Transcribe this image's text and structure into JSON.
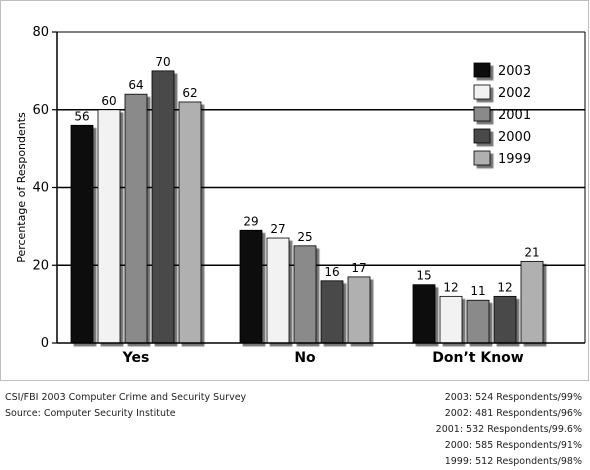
{
  "chart_data": {
    "type": "bar",
    "categories": [
      "Yes",
      "No",
      "Don’t Know"
    ],
    "series": [
      {
        "name": "2003",
        "values": [
          56,
          29,
          15
        ],
        "color": "#0a0a0a"
      },
      {
        "name": "2002",
        "values": [
          60,
          27,
          12
        ],
        "color": "#f2f2f2"
      },
      {
        "name": "2001",
        "values": [
          64,
          25,
          11
        ],
        "color": "#8a8a8a"
      },
      {
        "name": "2000",
        "values": [
          70,
          16,
          12
        ],
        "color": "#4a4a4a"
      },
      {
        "name": "1999",
        "values": [
          62,
          17,
          21
        ],
        "color": "#b0b0b0"
      }
    ],
    "ylabel": "Percentage of Respondents",
    "ylim": [
      0,
      80
    ],
    "yticks": [
      0,
      20,
      40,
      60,
      80
    ],
    "gridlines": [
      20,
      40,
      60
    ],
    "legend_position": "top-right"
  },
  "footer": {
    "source_lines": [
      "CSI/FBI 2003 Computer Crime and Security Survey",
      "Source: Computer Security Institute"
    ],
    "respondent_lines": [
      "2003: 524 Respondents/99%",
      "2002: 481 Respondents/96%",
      "2001: 532 Respondents/99.6%",
      "2000: 585 Respondents/91%",
      "1999: 512 Respondents/98%"
    ]
  }
}
